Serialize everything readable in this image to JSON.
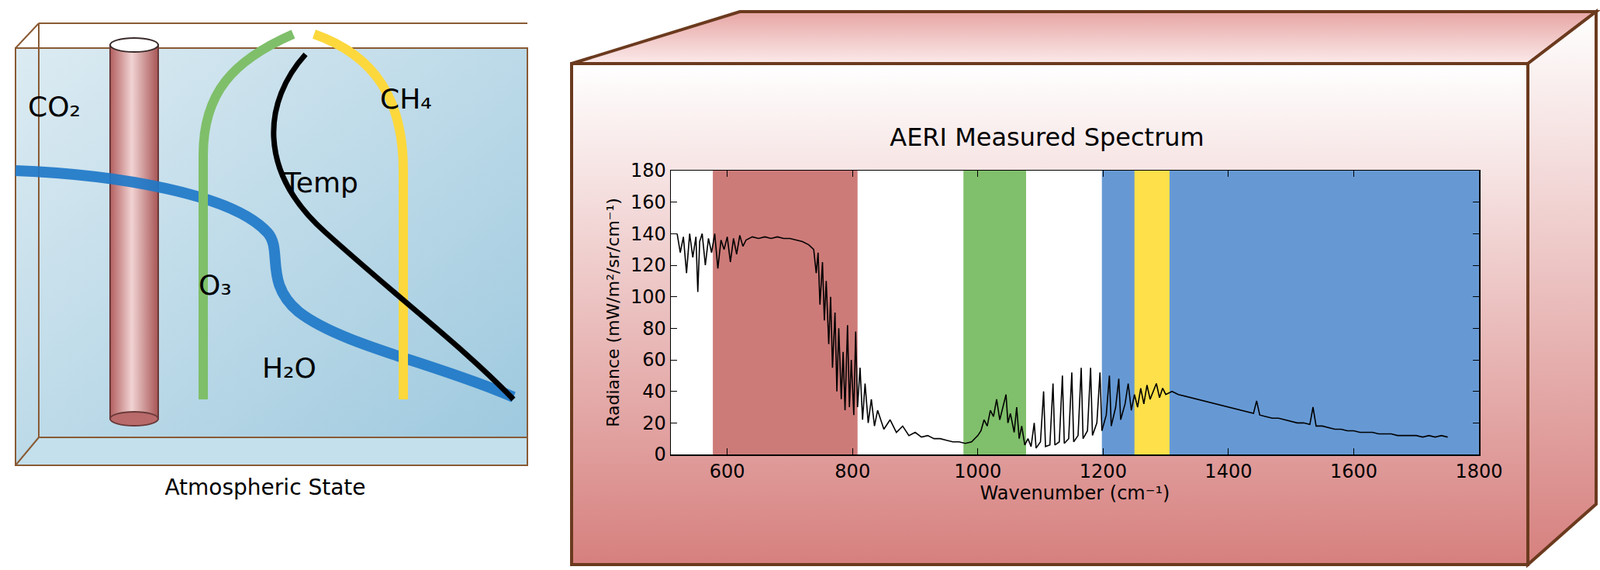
{
  "diagram": {
    "caption": "Atmospheric State",
    "labels": {
      "co2": "CO₂",
      "o3": "O₃",
      "temp": "Temp",
      "ch4": "CH₄",
      "h2o": "H₂O"
    }
  },
  "chart_data": {
    "type": "line",
    "title": "AERI Measured Spectrum",
    "x_label": "Wavenumber (cm⁻¹)",
    "y_label": "Radiance (mW/m²/sr/cm⁻¹)",
    "x": [
      520,
      525,
      530,
      535,
      540,
      545,
      550,
      553,
      556,
      560,
      565,
      570,
      575,
      580,
      585,
      590,
      595,
      600,
      605,
      610,
      615,
      620,
      625,
      630,
      640,
      650,
      660,
      670,
      680,
      690,
      700,
      710,
      720,
      730,
      738,
      742,
      745,
      748,
      752,
      755,
      758,
      762,
      765,
      768,
      772,
      775,
      778,
      782,
      785,
      788,
      792,
      795,
      798,
      802,
      805,
      808,
      812,
      816,
      820,
      825,
      830,
      835,
      840,
      850,
      860,
      870,
      880,
      890,
      900,
      910,
      920,
      930,
      940,
      950,
      960,
      970,
      980,
      990,
      1000,
      1005,
      1010,
      1015,
      1020,
      1025,
      1030,
      1035,
      1040,
      1045,
      1048,
      1052,
      1058,
      1062,
      1066,
      1070,
      1075,
      1080,
      1085,
      1090,
      1093,
      1100,
      1105,
      1108,
      1115,
      1120,
      1123,
      1130,
      1135,
      1138,
      1145,
      1150,
      1153,
      1160,
      1165,
      1168,
      1175,
      1180,
      1183,
      1190,
      1195,
      1198,
      1205,
      1210,
      1213,
      1220,
      1225,
      1228,
      1235,
      1240,
      1245,
      1250,
      1255,
      1260,
      1265,
      1270,
      1275,
      1280,
      1285,
      1290,
      1295,
      1300,
      1310,
      1320,
      1330,
      1340,
      1350,
      1360,
      1370,
      1380,
      1390,
      1400,
      1410,
      1420,
      1430,
      1440,
      1445,
      1450,
      1460,
      1470,
      1480,
      1490,
      1500,
      1510,
      1520,
      1530,
      1535,
      1540,
      1550,
      1560,
      1570,
      1580,
      1590,
      1600,
      1610,
      1620,
      1630,
      1640,
      1650,
      1660,
      1670,
      1680,
      1690,
      1700,
      1710,
      1720,
      1730,
      1740,
      1750
    ],
    "series": [
      {
        "color": "#000000",
        "values": [
          140,
          128,
          138,
          115,
          140,
          125,
          138,
          103,
          135,
          140,
          120,
          137,
          128,
          140,
          118,
          136,
          130,
          138,
          122,
          137,
          127,
          139,
          132,
          136,
          138,
          137,
          138,
          137,
          138,
          137,
          137,
          136,
          135,
          133,
          130,
          115,
          128,
          95,
          122,
          85,
          110,
          70,
          100,
          55,
          90,
          40,
          80,
          35,
          65,
          28,
          82,
          30,
          60,
          25,
          78,
          30,
          55,
          22,
          45,
          20,
          35,
          18,
          28,
          16,
          22,
          14,
          18,
          12,
          14,
          11,
          12,
          10,
          10,
          9,
          8,
          8,
          7,
          8,
          12,
          15,
          22,
          18,
          28,
          24,
          35,
          22,
          30,
          38,
          20,
          26,
          14,
          30,
          10,
          18,
          6,
          10,
          5,
          20,
          4,
          8,
          40,
          5,
          6,
          45,
          6,
          8,
          50,
          7,
          10,
          52,
          8,
          12,
          55,
          10,
          15,
          55,
          12,
          20,
          52,
          15,
          25,
          50,
          18,
          30,
          48,
          22,
          32,
          45,
          28,
          38,
          30,
          42,
          32,
          44,
          35,
          40,
          45,
          36,
          42,
          38,
          40,
          38,
          37,
          36,
          35,
          34,
          33,
          32,
          31,
          30,
          29,
          28,
          27,
          26,
          34,
          25,
          24,
          23,
          23,
          22,
          21,
          20,
          20,
          19,
          30,
          18,
          18,
          17,
          16,
          16,
          15,
          15,
          14,
          14,
          14,
          13,
          13,
          13,
          12,
          12,
          12,
          12,
          11,
          12,
          11,
          12,
          11
        ]
      }
    ],
    "xlim": [
      510,
      1800
    ],
    "xticks": [
      600,
      800,
      1000,
      1200,
      1400,
      1600,
      1800
    ],
    "ylim": [
      0,
      180
    ],
    "yticks": [
      0,
      20,
      40,
      60,
      80,
      100,
      120,
      140,
      160,
      180
    ],
    "grid": false,
    "regions": [
      {
        "x0": 577,
        "x1": 808,
        "color": "#cd7b79"
      },
      {
        "x0": 977,
        "x1": 1077,
        "color": "#80bf6b"
      },
      {
        "x0": 1198,
        "x1": 1800,
        "color": "#6699d4"
      },
      {
        "x0": 1250,
        "x1": 1306,
        "color": "#fde04a"
      }
    ]
  }
}
